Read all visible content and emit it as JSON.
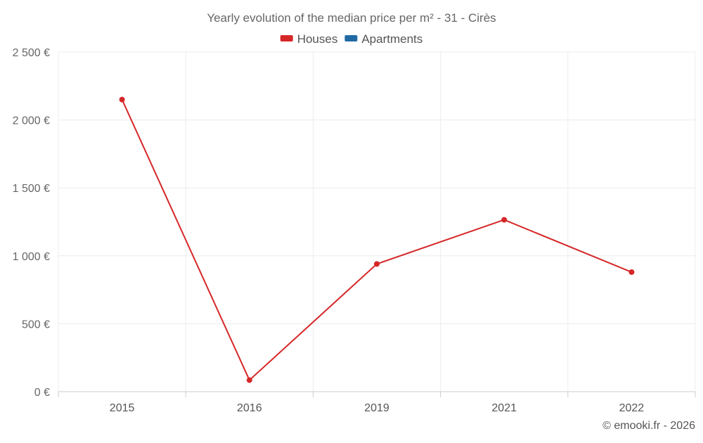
{
  "chart_data": {
    "type": "line",
    "title": "Yearly evolution of the median price per m² - 31 - Cirès",
    "categories": [
      "2015",
      "2016",
      "2019",
      "2021",
      "2022"
    ],
    "series": [
      {
        "name": "Houses",
        "color": "#d62728",
        "values": [
          2150,
          85,
          940,
          1265,
          880
        ]
      },
      {
        "name": "Apartments",
        "color": "#1f6aa5",
        "values": [
          null,
          null,
          null,
          null,
          null
        ]
      }
    ],
    "ylim": [
      0,
      2500
    ],
    "yticks": [
      0,
      500,
      1000,
      1500,
      2000,
      2500
    ],
    "ytick_labels": [
      "0 €",
      "500 €",
      "1 000 €",
      "1 500 €",
      "2 000 €",
      "2 500 €"
    ],
    "xlabel": "",
    "ylabel": "",
    "grid": true,
    "legend_position": "top-center"
  },
  "footer": {
    "credit": "© emooki.fr - 2026"
  }
}
